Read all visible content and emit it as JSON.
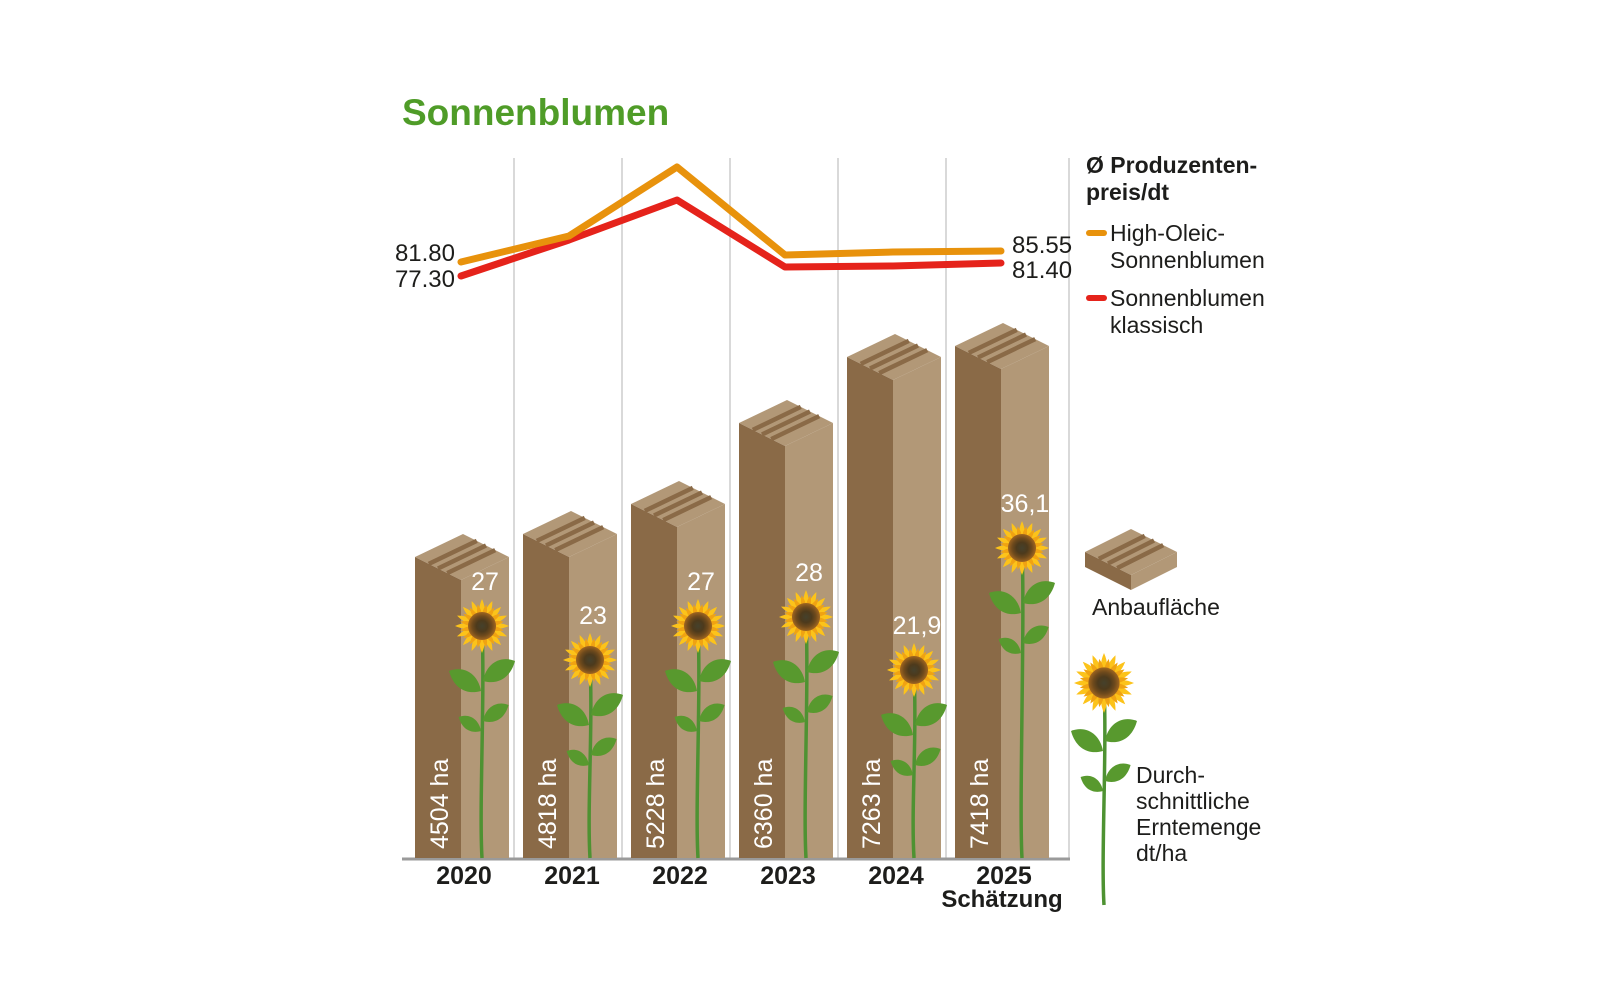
{
  "title": "Sonnenblumen",
  "colors": {
    "title_green": "#4f9c28",
    "high_oleic_orange": "#e8920c",
    "klassisch_red": "#e5231b",
    "bar_front": "#8a6a47",
    "bar_side": "#b29877",
    "gridline": "#d9d9d9",
    "baseline": "#9a9a9a",
    "text": "#1d1d1b",
    "bar_label_white": "#ffffff",
    "petal_yellow": "#fcc31a",
    "petal_inner": "#f0a312",
    "stem_green": "#4e9232",
    "leaf_green": "#58992e"
  },
  "legend": {
    "price_title": "Ø Produzenten-\npreis/dt",
    "price_series": [
      {
        "label": "High-Oleic-\nSonnenblumen",
        "color": "#e8920c"
      },
      {
        "label": "Sonnenblumen\nklassisch",
        "color": "#e5231b"
      }
    ],
    "area_label": "Anbaufläche",
    "yield_label": "Durch-\nschnittliche\nErntemenge\ndt/ha"
  },
  "x_axis": {
    "years": [
      "2020",
      "2021",
      "2022",
      "2023",
      "2024",
      "2025"
    ],
    "estimate_note": "Schätzung"
  },
  "chart_data": [
    {
      "type": "line",
      "title": "Ø Produzentenpreis/dt",
      "x": [
        "2020",
        "2021",
        "2022",
        "2023",
        "2024",
        "2025"
      ],
      "series": [
        {
          "name": "High-Oleic-Sonnenblumen",
          "color": "#e8920c",
          "values": [
            81.8,
            90.5,
            113.5,
            84.0,
            85.0,
            85.55
          ],
          "first_label": "81.80",
          "last_label": "85.55"
        },
        {
          "name": "Sonnenblumen klassisch",
          "color": "#e5231b",
          "values": [
            77.3,
            89.0,
            102.5,
            80.0,
            80.5,
            81.4
          ],
          "first_label": "77.30",
          "last_label": "81.40"
        }
      ],
      "intermediate_values_estimated": true,
      "legend_position": "right",
      "grid": "vertical-only"
    },
    {
      "type": "bar",
      "title": "Anbaufläche",
      "categories": [
        "2020",
        "2021",
        "2022",
        "2023",
        "2024",
        "2025 Schätzung"
      ],
      "values": [
        4504,
        4818,
        5228,
        6360,
        7263,
        7418
      ],
      "unit": "ha",
      "bar_labels": [
        "4504 ha",
        "4818 ha",
        "5228 ha",
        "6360 ha",
        "7263 ha",
        "7418 ha"
      ]
    },
    {
      "type": "scatter",
      "title": "Durchschnittliche Erntemenge dt/ha",
      "categories": [
        "2020",
        "2021",
        "2022",
        "2023",
        "2024",
        "2025 Schätzung"
      ],
      "values": [
        27,
        23,
        27,
        28,
        21.9,
        36.1
      ],
      "point_labels": [
        "27",
        "23",
        "27",
        "28",
        "21,9",
        "36,1"
      ],
      "marker": "sunflower-pictogram"
    }
  ]
}
